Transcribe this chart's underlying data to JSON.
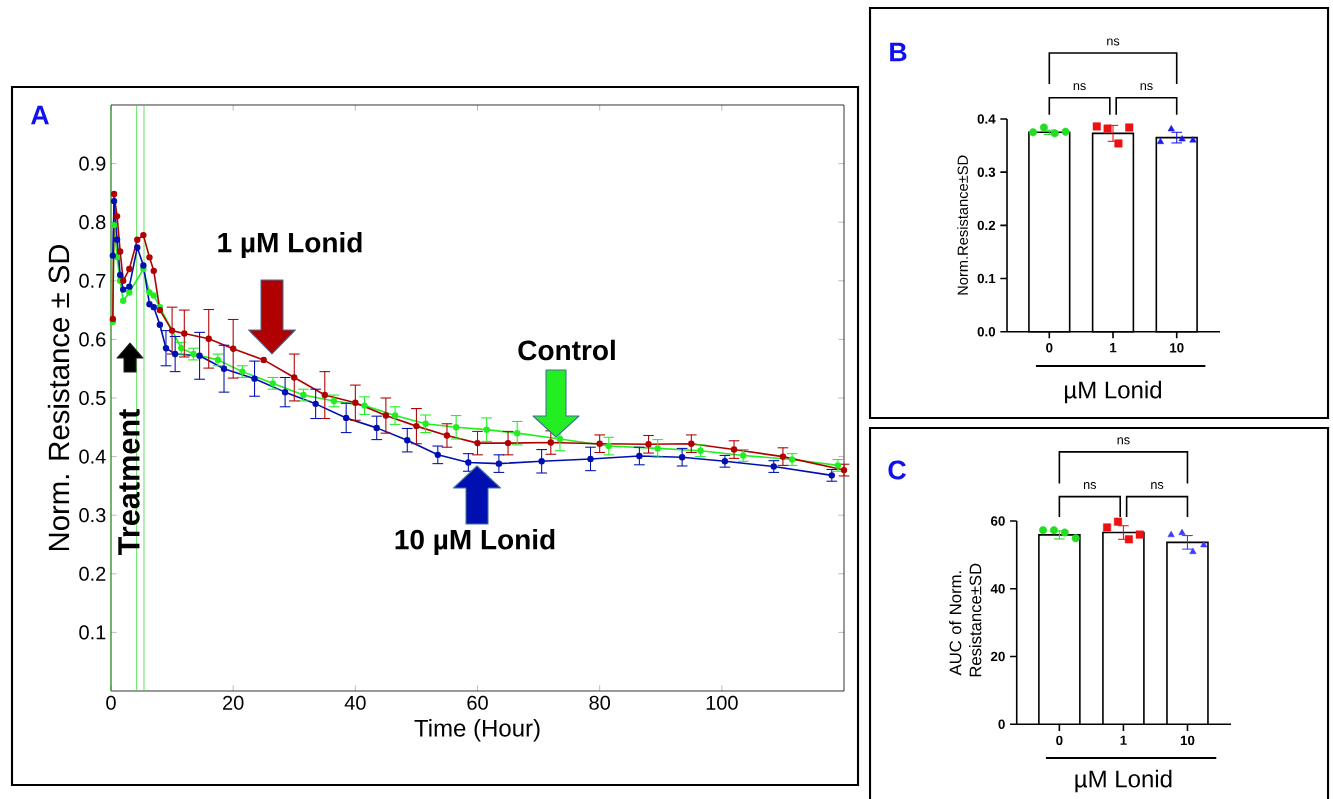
{
  "chart_data": [
    {
      "type": "line",
      "title": "A",
      "xlabel": "Time (Hour)",
      "ylabel": "Norm. Resistance ± SD",
      "xlim": [
        0,
        120
      ],
      "ylim": [
        0,
        1
      ],
      "xticks": [
        0,
        20,
        40,
        60,
        80,
        100
      ],
      "yticks": [
        0.1,
        0.2,
        0.3,
        0.4,
        0.5,
        0.6,
        0.7,
        0.8,
        0.9
      ],
      "marker": "circle",
      "line_style": "solid",
      "x": [
        0.3,
        0.5,
        1,
        1.5,
        2,
        3,
        4.3,
        5.3,
        6.3,
        7,
        8,
        10,
        12,
        16,
        20,
        25,
        30,
        35,
        40,
        45,
        50,
        55,
        60,
        65,
        72,
        80,
        88,
        95,
        102,
        110,
        120
      ],
      "series": [
        {
          "name": "Control",
          "color": "#22ee22",
          "x": [
            0.3,
            0.5,
            1,
            1.5,
            2,
            3,
            4.3,
            5.3,
            6.3,
            7,
            8,
            11.5,
            13.5,
            17.5,
            21.5,
            26.5,
            31.5,
            36.5,
            41.5,
            46.5,
            51.5,
            56.5,
            61.5,
            66.5,
            73.5,
            81.5,
            89.5,
            96.5,
            103.5,
            111.5,
            119
          ],
          "values": [
            0.63,
            0.795,
            0.74,
            0.7,
            0.666,
            0.68,
            null,
            0.72,
            0.68,
            0.675,
            0.655,
            0.585,
            0.575,
            0.565,
            0.545,
            0.525,
            0.505,
            0.495,
            0.487,
            0.47,
            0.456,
            0.45,
            0.446,
            0.44,
            0.43,
            0.418,
            0.414,
            0.41,
            0.402,
            0.395,
            0.385
          ],
          "errors": [
            null,
            null,
            null,
            null,
            null,
            null,
            null,
            null,
            null,
            null,
            null,
            0.01,
            0.01,
            0.01,
            0.01,
            0.01,
            0.01,
            0.01,
            0.015,
            0.015,
            0.015,
            0.02,
            0.02,
            0.02,
            0.02,
            0.015,
            0.015,
            0.01,
            0.01,
            0.01,
            0.01
          ]
        },
        {
          "name": "1 µM Lonid",
          "color": "#b00000",
          "values": [
            0.635,
            0.848,
            0.81,
            0.75,
            0.7,
            0.72,
            0.77,
            0.778,
            0.74,
            0.717,
            0.65,
            0.615,
            0.61,
            0.601,
            0.584,
            0.565,
            0.535,
            0.505,
            0.492,
            0.47,
            0.452,
            0.436,
            0.423,
            0.423,
            0.424,
            0.422,
            0.421,
            0.422,
            0.412,
            0.4,
            0.377
          ],
          "errors": [
            null,
            null,
            null,
            null,
            null,
            null,
            null,
            null,
            null,
            null,
            null,
            0.04,
            0.04,
            0.05,
            0.05,
            null,
            0.04,
            0.04,
            0.03,
            0.03,
            0.03,
            0.02,
            0.02,
            0.02,
            0.02,
            0.015,
            0.015,
            0.015,
            0.015,
            0.015,
            0.01
          ]
        },
        {
          "name": "10 µM Lonid",
          "color": "#0010b0",
          "x": [
            0.3,
            0.5,
            1,
            1.5,
            2,
            3,
            4.3,
            5.3,
            6.3,
            7,
            8,
            9,
            10.5,
            14.5,
            18.5,
            23.5,
            28.5,
            33.5,
            38.5,
            43.5,
            48.5,
            53.5,
            58.5,
            63.5,
            70.5,
            78.5,
            86.5,
            93.5,
            100.5,
            108.5,
            118
          ],
          "values": [
            0.743,
            0.836,
            0.77,
            0.71,
            0.685,
            0.69,
            0.757,
            0.726,
            0.66,
            0.655,
            0.625,
            0.585,
            0.575,
            0.572,
            0.55,
            0.533,
            0.51,
            0.49,
            0.466,
            0.449,
            0.428,
            0.403,
            0.39,
            0.388,
            0.392,
            0.396,
            0.401,
            0.399,
            0.392,
            0.383,
            0.368
          ],
          "errors": [
            null,
            null,
            null,
            null,
            null,
            null,
            null,
            null,
            null,
            null,
            null,
            0.03,
            0.03,
            0.04,
            0.04,
            0.03,
            0.025,
            0.025,
            0.025,
            0.02,
            0.02,
            0.015,
            0.015,
            0.015,
            0.02,
            0.02,
            0.015,
            0.015,
            0.01,
            0.01,
            0.01
          ]
        }
      ],
      "ref_lines": [
        {
          "axis": "x",
          "value": 0,
          "color": "#33dd33"
        },
        {
          "axis": "x",
          "value": 4.2,
          "color": "#33dd33"
        },
        {
          "axis": "x",
          "value": 5.4,
          "color": "#33dd33"
        }
      ],
      "annotations": [
        "Treatment"
      ]
    },
    {
      "type": "bar",
      "title": "B",
      "xlabel": "µM Lonid",
      "ylabel": "Norm.Resistance±SD",
      "categories": [
        "0",
        "1",
        "10"
      ],
      "ylim": [
        0,
        0.4
      ],
      "yticks": [
        {
          "value": 0,
          "label": "0.0"
        },
        0.1,
        0.2,
        0.3,
        0.4
      ],
      "series": [
        {
          "type": "bar",
          "color": "#ffffff",
          "values": [
            0.375,
            0.373,
            0.365
          ],
          "errors": [
            0.004,
            0.015,
            0.01
          ]
        },
        {
          "type": "scatter",
          "color": "#22dd22",
          "marker": "circle",
          "x": [
            "0",
            "0",
            "0",
            "0"
          ],
          "values": [
            0.375,
            0.384,
            0.373,
            0.376
          ]
        },
        {
          "type": "scatter",
          "color": "#ee1111",
          "marker": "square",
          "x": [
            "1",
            "1",
            "1",
            "1"
          ],
          "values": [
            0.386,
            0.382,
            0.354,
            0.384
          ]
        },
        {
          "type": "scatter",
          "color": "#1a1aee",
          "marker": "triangle",
          "x": [
            "10",
            "10",
            "10",
            "10"
          ],
          "values": [
            0.357,
            0.381,
            0.362,
            0.36
          ]
        }
      ],
      "annotations": [
        "ns",
        "ns",
        "ns"
      ]
    },
    {
      "type": "bar",
      "title": "C",
      "xlabel": "µM Lonid",
      "ylabel": "AUC of Norm. Resistance±SD",
      "categories": [
        "0",
        "1",
        "10"
      ],
      "ylim": [
        0,
        60
      ],
      "yticks": [
        0,
        20,
        40,
        60
      ],
      "series": [
        {
          "type": "bar",
          "color": "#ffffff",
          "values": [
            55.9,
            56.6,
            53.7
          ],
          "errors": [
            1.2,
            2,
            2
          ]
        },
        {
          "type": "scatter",
          "color": "#22dd22",
          "marker": "circle",
          "x": [
            "0",
            "0",
            "0",
            "0"
          ],
          "values": [
            57.3,
            57.3,
            56.6,
            54.9
          ]
        },
        {
          "type": "scatter",
          "color": "#ee1111",
          "marker": "square",
          "x": [
            "1",
            "1",
            "1",
            "1"
          ],
          "values": [
            58.1,
            59.8,
            54.6,
            56
          ]
        },
        {
          "type": "scatter",
          "color": "#3b3bff",
          "marker": "triangle",
          "x": [
            "10",
            "10",
            "10",
            "10"
          ],
          "values": [
            55.9,
            56.5,
            50.9,
            52.9
          ]
        }
      ],
      "annotations": [
        "ns",
        "ns",
        "ns"
      ]
    }
  ]
}
